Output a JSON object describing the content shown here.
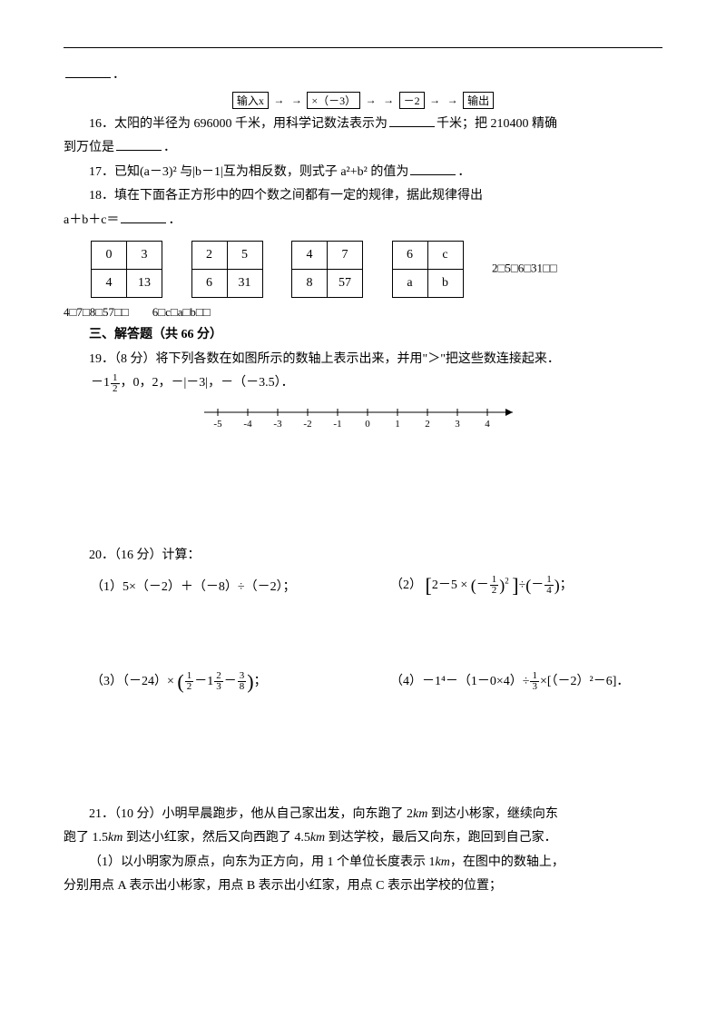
{
  "q15_tail": "．",
  "flowchart": {
    "input": "输入x",
    "step1": "×（－3）",
    "step2": "－2",
    "output": "输出",
    "arrow": "→"
  },
  "q16": {
    "label": "16．",
    "part1_before": "太阳的半径为 696000 千米，用科学记数法表示为",
    "part1_after": "千米；把 210400 精确",
    "part2_before": "到万位是",
    "part2_after": "．"
  },
  "q17": {
    "label": "17．",
    "before": "已知(a－3)² 与|b－1|互为相反数，则式子 a²+b² 的值为",
    "after": "．"
  },
  "q18": {
    "label": "18．",
    "line1": "填在下面各正方形中的四个数之间都有一定的规律，据此规律得出",
    "line2_before": "a＋b＋c＝",
    "line2_after": "．",
    "tables": [
      [
        [
          "0",
          "3"
        ],
        [
          "4",
          "13"
        ]
      ],
      [
        [
          "2",
          "5"
        ],
        [
          "6",
          "31"
        ]
      ],
      [
        [
          "4",
          "7"
        ],
        [
          "8",
          "57"
        ]
      ],
      [
        [
          "6",
          "c"
        ],
        [
          "a",
          "b"
        ]
      ]
    ],
    "fallback1": "2□5□6□31□□",
    "fallback2": "4□7□8□57□□　　6□c□a□b□□"
  },
  "section3": "三、解答题（共 66 分）",
  "q19": {
    "label": "19．（8 分）",
    "text": "将下列各数在如图所示的数轴上表示出来，并用\"＞\"把这些数连接起来．",
    "nums_before_frac": "－1",
    "nums_after_frac": "，0，2，－|－3|，－（－3.5）．",
    "axis_labels": [
      "-5",
      "-4",
      "-3",
      "-2",
      "-1",
      "0",
      "1",
      "2",
      "3",
      "4"
    ]
  },
  "q20": {
    "label": "20．（16 分）",
    "text": "计算：",
    "items": {
      "i1_label": "（1）",
      "i1_expr": "5×（－2）＋（－8）÷（－2）；",
      "i2_label": "（2）",
      "i3_label": "（3）",
      "i3_prefix": "（－24）×",
      "i3_suffix": "；",
      "i4_label": "（4）",
      "i4_a": "－1⁴－（1－0×4）÷",
      "i4_b": "×[（－2）²－6]．"
    }
  },
  "q21": {
    "label": "21．（10 分）",
    "line1": "小明早晨跑步，他从自己家出发，向东跑了 2km 到达小彬家，继续向东",
    "line2": "跑了 1.5km 到达小红家，然后又向西跑了 4.5km 到达学校，最后又向东，跑回到自己家．",
    "sub1": "（1）以小明家为原点，向东为正方向，用 1 个单位长度表示 1km，在图中的数轴上，",
    "sub1_2": "分别用点 A 表示出小彬家，用点 B 表示出小红家，用点 C 表示出学校的位置；"
  },
  "italic_km": "km"
}
